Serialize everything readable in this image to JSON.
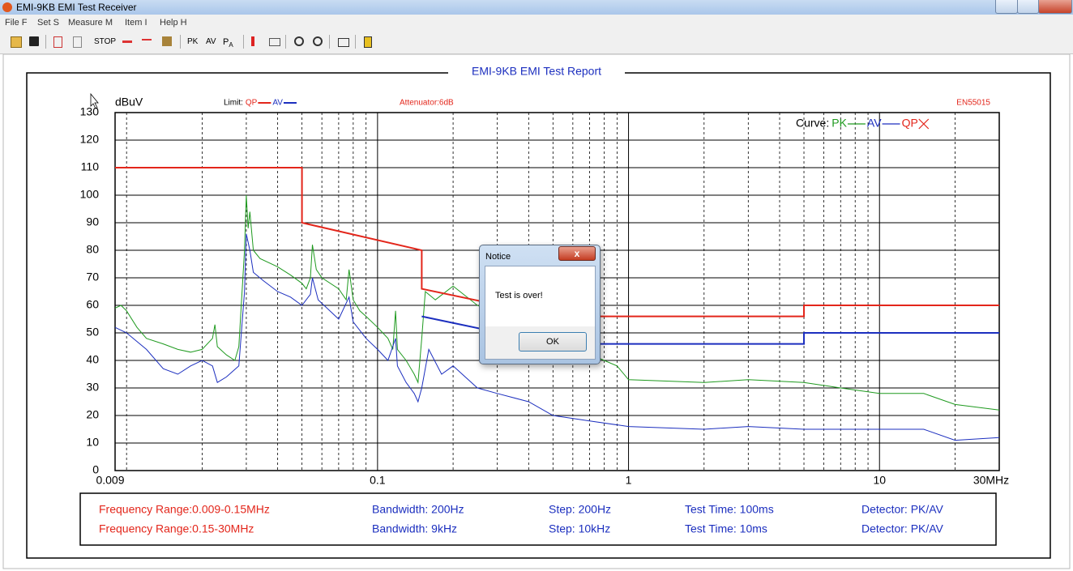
{
  "window": {
    "title": "EMI-9KB EMI Test Receiver"
  },
  "menu": [
    "File F",
    "Set S",
    "Measure M",
    "Item I",
    "Help H"
  ],
  "toolbar": {
    "stop": "STOP",
    "pk": "PK",
    "av": "AV",
    "pa": {
      "text": "P",
      "sub": "A"
    }
  },
  "chart_data": {
    "type": "line",
    "title": "EMI-9KB EMI Test Report",
    "y_label": "dBuV",
    "log_x": true,
    "grid": true,
    "xlim": [
      0.009,
      30
    ],
    "ylim": [
      0,
      130
    ],
    "xticks": [
      0.009,
      0.1,
      1,
      10,
      {
        "value": 30,
        "label": "30MHz"
      }
    ],
    "xgrid_minor": [
      0.01,
      0.02,
      0.03,
      0.04,
      0.05,
      0.06,
      0.07,
      0.08,
      0.09,
      0.2,
      0.3,
      0.4,
      0.5,
      0.6,
      0.7,
      0.8,
      0.9,
      2,
      3,
      4,
      5,
      6,
      7,
      8,
      9,
      20
    ],
    "yticks": [
      0,
      10,
      20,
      30,
      40,
      50,
      60,
      70,
      80,
      90,
      100,
      110,
      120,
      130
    ],
    "annotations": {
      "attenuator": "Attenuator:6dB",
      "standard": "EN55015"
    },
    "limit_label": "Limit:",
    "curve_label": "Curve:",
    "limits": [
      {
        "name": "QP",
        "color": "#e3261b",
        "x": [
          0.009,
          0.05,
          0.05,
          0.15,
          0.15,
          0.5,
          5,
          5,
          30
        ],
        "values": [
          110,
          110,
          90,
          80,
          66,
          56,
          56,
          60,
          60
        ]
      },
      {
        "name": "AV",
        "color": "#1c2fbf",
        "x": [
          0.15,
          0.5,
          5,
          5,
          30
        ],
        "values": [
          56,
          46,
          46,
          50,
          50
        ]
      }
    ],
    "series": [
      {
        "name": "PK",
        "color": "#1f9a1f",
        "x": [
          0.009,
          0.0095,
          0.01,
          0.011,
          0.012,
          0.014,
          0.016,
          0.018,
          0.02,
          0.022,
          0.0225,
          0.023,
          0.025,
          0.027,
          0.028,
          0.0295,
          0.03,
          0.0305,
          0.031,
          0.032,
          0.034,
          0.04,
          0.045,
          0.05,
          0.052,
          0.054,
          0.055,
          0.057,
          0.06,
          0.07,
          0.075,
          0.077,
          0.08,
          0.085,
          0.09,
          0.1,
          0.11,
          0.115,
          0.118,
          0.12,
          0.13,
          0.14,
          0.145,
          0.15,
          0.155,
          0.17,
          0.2,
          0.25,
          0.8,
          0.9,
          1,
          2,
          3,
          5,
          7,
          10,
          15,
          20,
          30
        ],
        "values": [
          59,
          60,
          58,
          52,
          48,
          46,
          44,
          43,
          44,
          48,
          53,
          45,
          42,
          40,
          45,
          80,
          100,
          88,
          94,
          80,
          77,
          74,
          71,
          68,
          66,
          70,
          82,
          73,
          70,
          66,
          62,
          73,
          62,
          58,
          56,
          52,
          48,
          44,
          58,
          44,
          40,
          35,
          32,
          48,
          65,
          62,
          67,
          60,
          40,
          38,
          33,
          32,
          33,
          32,
          30,
          28,
          28,
          24,
          22
        ]
      },
      {
        "name": "AV",
        "color": "#1c2fbf",
        "x": [
          0.009,
          0.01,
          0.012,
          0.014,
          0.016,
          0.018,
          0.02,
          0.022,
          0.023,
          0.025,
          0.028,
          0.0295,
          0.03,
          0.031,
          0.032,
          0.035,
          0.04,
          0.045,
          0.05,
          0.054,
          0.055,
          0.058,
          0.07,
          0.077,
          0.08,
          0.09,
          0.1,
          0.11,
          0.118,
          0.12,
          0.13,
          0.14,
          0.145,
          0.15,
          0.16,
          0.18,
          0.2,
          0.25,
          0.3,
          0.4,
          0.5,
          0.7,
          1,
          2,
          3,
          5,
          10,
          15,
          20,
          30
        ],
        "values": [
          52,
          50,
          44,
          37,
          35,
          38,
          40,
          38,
          32,
          34,
          38,
          65,
          86,
          80,
          72,
          69,
          65,
          63,
          60,
          64,
          70,
          62,
          55,
          63,
          54,
          48,
          44,
          40,
          48,
          38,
          32,
          28,
          25,
          30,
          44,
          35,
          38,
          30,
          28,
          25,
          20,
          18,
          16,
          15,
          16,
          15,
          15,
          15,
          11,
          12
        ]
      },
      {
        "name": "QP",
        "color": "#e3261b",
        "x": [],
        "values": []
      }
    ]
  },
  "info": {
    "rows": [
      [
        "Frequency Range:0.009-0.15MHz",
        "Bandwidth: 200Hz",
        "Step: 200Hz",
        "Test Time: 100ms",
        "Detector: PK/AV"
      ],
      [
        "Frequency Range:0.15-30MHz",
        "Bandwidth: 9kHz",
        "Step: 10kHz",
        "Test Time: 10ms",
        "Detector: PK/AV"
      ]
    ]
  },
  "dialog": {
    "title": "Notice",
    "message": "Test is over!",
    "button": "OK"
  }
}
